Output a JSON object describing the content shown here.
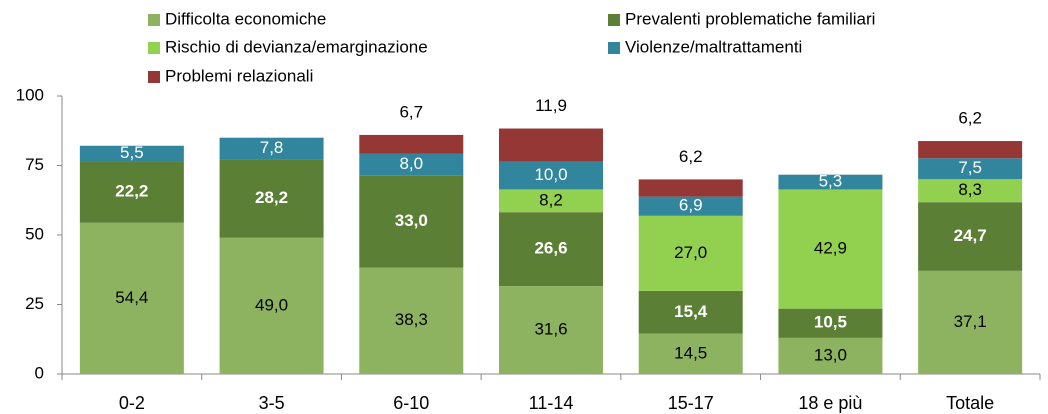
{
  "chart_data": {
    "type": "stacked_bar",
    "categories": [
      "0-2",
      "3-5",
      "6-10",
      "11-14",
      "15-17",
      "18 e più",
      "Totale"
    ],
    "series": [
      {
        "name": "Difficolta economiche",
        "color": "#8db360",
        "values": [
          54.4,
          49.0,
          38.3,
          31.6,
          14.5,
          13.0,
          37.1
        ],
        "value_labels": [
          "54,4",
          "49,0",
          "38,3",
          "31,6",
          "14,5",
          "13,0",
          "37,1"
        ]
      },
      {
        "name": "Prevalenti problematiche familiari",
        "color": "#5b7f34",
        "values": [
          22.2,
          28.2,
          33.0,
          26.6,
          15.4,
          10.5,
          24.7
        ],
        "value_labels": [
          "22,2",
          "28,2",
          "33,0",
          "26,6",
          "15,4",
          "10,5",
          "24,7"
        ]
      },
      {
        "name": "Rischio di devianza/emarginazione",
        "color": "#92d050",
        "values": [
          null,
          null,
          null,
          8.2,
          27.0,
          42.9,
          8.3
        ],
        "value_labels": [
          null,
          null,
          null,
          "8,2",
          "27,0",
          "42,9",
          "8,3"
        ]
      },
      {
        "name": "Violenze/maltrattamenti",
        "color": "#31859c",
        "values": [
          5.5,
          7.8,
          8.0,
          10.0,
          6.9,
          5.3,
          7.5
        ],
        "value_labels": [
          "5,5",
          "7,8",
          "8,0",
          "10,0",
          "6,9",
          "5,3",
          "7,5"
        ]
      },
      {
        "name": "Problemi relazionali",
        "color": "#953735",
        "values": [
          null,
          null,
          6.7,
          11.9,
          6.2,
          null,
          6.2
        ],
        "value_labels": [
          null,
          null,
          "6,7",
          "11,9",
          "6,2",
          null,
          "6,2"
        ]
      }
    ],
    "ylim": [
      0,
      100
    ],
    "yticks": [
      0,
      25,
      50,
      75,
      100
    ],
    "grid": false
  }
}
